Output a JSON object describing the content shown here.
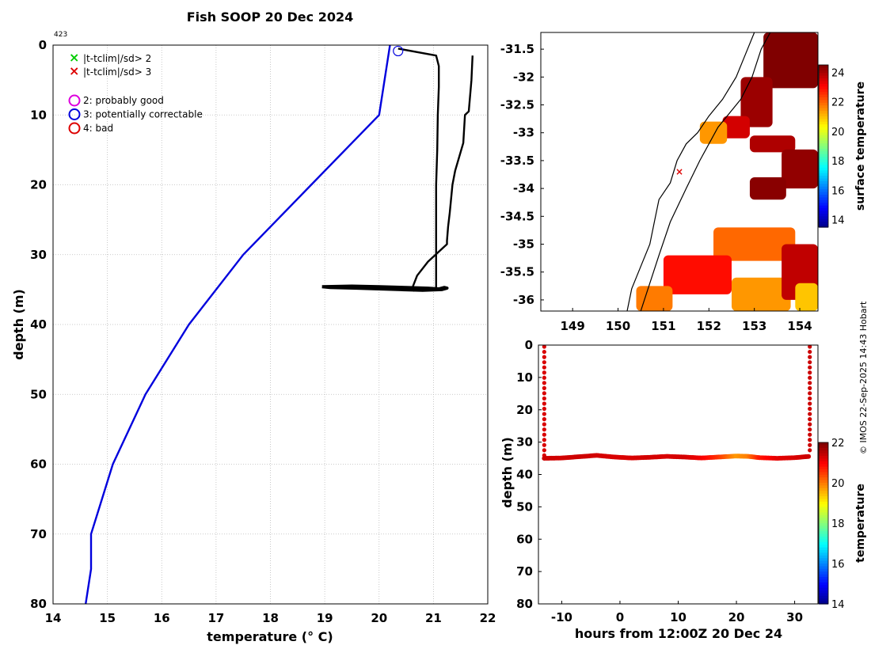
{
  "title": "Fish SOOP 20 Dec 2024",
  "profile_id": "423",
  "credit": "© IMOS 22-Sep-2025 14:43 Hobart",
  "colors": {
    "climatology": "#0000dd",
    "profile": "#000000",
    "land": "#000000"
  },
  "legend": {
    "flags": [
      {
        "symbol": "×",
        "label": "|t-tclim|/sd> 2",
        "color": "#00cc00"
      },
      {
        "symbol": "×",
        "label": "|t-tclim|/sd> 3",
        "color": "#dd0000"
      }
    ],
    "qc": [
      {
        "label": "2: probably good",
        "color": "#dd00dd"
      },
      {
        "label": "3: potentially correctable",
        "color": "#0000dd"
      },
      {
        "label": "4: bad",
        "color": "#dd0000"
      }
    ]
  },
  "chart_data": [
    {
      "id": "profile",
      "type": "line",
      "xlabel": "temperature (° C)",
      "ylabel": "depth (m)",
      "xlim": [
        14,
        22
      ],
      "ylim": [
        0,
        80
      ],
      "y_reversed": true,
      "grid": true,
      "xticks": [
        "14",
        "15",
        "16",
        "17",
        "18",
        "19",
        "20",
        "21",
        "22"
      ],
      "yticks": [
        "0",
        "10",
        "20",
        "30",
        "40",
        "50",
        "60",
        "70",
        "80"
      ],
      "series": [
        {
          "kind": "climatology",
          "x": [
            20.2,
            20.0,
            17.5,
            16.5,
            15.7,
            15.1,
            14.7,
            14.7,
            14.6
          ],
          "y": [
            0,
            10,
            30,
            40,
            50,
            60,
            70,
            75,
            80
          ]
        },
        {
          "kind": "profile-a",
          "x": [
            20.35,
            21.05,
            21.1,
            21.1,
            21.08,
            21.07,
            21.05,
            21.05,
            21.05,
            21.05,
            21.05
          ],
          "y": [
            0.5,
            1.5,
            3,
            6,
            10,
            15,
            20,
            25,
            30,
            33,
            35
          ]
        },
        {
          "kind": "profile-b",
          "x": [
            21.72,
            21.7,
            21.65,
            21.58,
            21.55,
            21.4,
            21.35,
            21.3,
            21.27,
            21.25,
            21.25,
            20.9,
            20.7,
            20.6,
            20.65
          ],
          "y": [
            1.5,
            5,
            9.5,
            10,
            14,
            18,
            20,
            24,
            26,
            28,
            28.5,
            31,
            33,
            35,
            35.2
          ]
        },
        {
          "kind": "bottom-trace",
          "x": [
            18.95,
            19.5,
            20.0,
            20.5,
            20.9,
            21.1,
            21.2,
            21.25,
            21.15,
            20.8,
            20.4,
            20.0,
            19.6,
            19.1,
            18.95
          ],
          "y": [
            34.6,
            34.5,
            34.6,
            34.7,
            34.8,
            34.9,
            34.7,
            34.8,
            35.0,
            35.1,
            35.0,
            34.9,
            34.8,
            34.7,
            34.6
          ]
        }
      ],
      "qc_marker": {
        "x": 20.35,
        "y": 0.5,
        "flag": "3"
      }
    },
    {
      "id": "map",
      "type": "heatmap",
      "colorbar_label": "surface temperature",
      "xlim": [
        148.3,
        154.4
      ],
      "ylim": [
        -36.2,
        -31.2
      ],
      "xticks": [
        "149",
        "150",
        "151",
        "152",
        "153",
        "154"
      ],
      "yticks": [
        "-31.5",
        "-32",
        "-32.5",
        "-33",
        "-33.5",
        "-34",
        "-34.5",
        "-35",
        "-35.5",
        "-36"
      ],
      "clim": [
        13.5,
        24.5
      ],
      "cticks": [
        "14",
        "16",
        "18",
        "20",
        "22",
        "24"
      ],
      "track_point": {
        "lon": 151.35,
        "lat": -33.7
      },
      "coastline": [
        [
          150.2,
          -36.2
        ],
        [
          150.3,
          -35.8
        ],
        [
          150.5,
          -35.4
        ],
        [
          150.7,
          -35.0
        ],
        [
          150.8,
          -34.6
        ],
        [
          150.9,
          -34.2
        ],
        [
          151.15,
          -33.9
        ],
        [
          151.3,
          -33.5
        ],
        [
          151.5,
          -33.2
        ],
        [
          151.75,
          -33.0
        ],
        [
          152.0,
          -32.7
        ],
        [
          152.3,
          -32.4
        ],
        [
          152.6,
          -32.0
        ],
        [
          152.8,
          -31.6
        ],
        [
          153.0,
          -31.2
        ]
      ],
      "shelf_edge": [
        [
          150.5,
          -36.2
        ],
        [
          150.7,
          -35.7
        ],
        [
          150.9,
          -35.2
        ],
        [
          151.15,
          -34.6
        ],
        [
          151.5,
          -34.0
        ],
        [
          151.8,
          -33.5
        ],
        [
          152.2,
          -32.9
        ],
        [
          152.7,
          -32.4
        ],
        [
          152.95,
          -32.0
        ],
        [
          153.15,
          -31.5
        ],
        [
          153.35,
          -31.2
        ]
      ],
      "patches": [
        {
          "lon": [
            153.2,
            154.4
          ],
          "lat": [
            -32.2,
            -31.2
          ],
          "value": 24.5
        },
        {
          "lon": [
            152.7,
            153.4
          ],
          "lat": [
            -32.9,
            -32.0
          ],
          "value": 24.2
        },
        {
          "lon": [
            152.3,
            152.9
          ],
          "lat": [
            -33.1,
            -32.7
          ],
          "value": 23.6
        },
        {
          "lon": [
            151.8,
            152.4
          ],
          "lat": [
            -33.2,
            -32.8
          ],
          "value": 21.5
        },
        {
          "lon": [
            152.9,
            153.9
          ],
          "lat": [
            -33.35,
            -33.05
          ],
          "value": 24.0
        },
        {
          "lon": [
            153.6,
            154.4
          ],
          "lat": [
            -34.0,
            -33.3
          ],
          "value": 24.3
        },
        {
          "lon": [
            152.9,
            153.7
          ],
          "lat": [
            -34.2,
            -33.8
          ],
          "value": 24.4
        },
        {
          "lon": [
            152.1,
            153.9
          ],
          "lat": [
            -35.3,
            -34.7
          ],
          "value": 22.0
        },
        {
          "lon": [
            151.0,
            152.5
          ],
          "lat": [
            -35.9,
            -35.2
          ],
          "value": 23.0
        },
        {
          "lon": [
            152.5,
            153.8
          ],
          "lat": [
            -36.2,
            -35.6
          ],
          "value": 21.5
        },
        {
          "lon": [
            153.6,
            154.4
          ],
          "lat": [
            -36.0,
            -35.0
          ],
          "value": 23.8
        },
        {
          "lon": [
            153.9,
            154.4
          ],
          "lat": [
            -36.2,
            -35.7
          ],
          "value": 21.0
        },
        {
          "lon": [
            150.4,
            151.2
          ],
          "lat": [
            -36.2,
            -35.75
          ],
          "value": 21.8
        }
      ]
    },
    {
      "id": "timeseries",
      "type": "scatter",
      "xlabel": "hours from 12:00Z 20 Dec 24",
      "ylabel": "depth (m)",
      "colorbar_label": "temperature",
      "xlim": [
        -14,
        34
      ],
      "ylim": [
        0,
        80
      ],
      "y_reversed": true,
      "xticks": [
        "-10",
        "0",
        "10",
        "20",
        "30"
      ],
      "yticks": [
        "0",
        "10",
        "20",
        "30",
        "40",
        "50",
        "60",
        "70",
        "80"
      ],
      "clim": [
        14,
        22
      ],
      "cticks": [
        "14",
        "16",
        "18",
        "20",
        "22"
      ],
      "descents": [
        {
          "x": -13.0,
          "ymin": 0.5,
          "ymax": 35,
          "value": 21.3
        },
        {
          "x": 32.6,
          "ymin": 0.5,
          "ymax": 34,
          "value": 21.4
        }
      ],
      "track_t": [
        -13,
        -10,
        -7,
        -4,
        -1,
        2,
        5,
        8,
        11,
        14,
        17,
        20,
        22,
        24,
        27,
        30,
        32.6
      ],
      "track_depth": [
        35.0,
        34.9,
        34.5,
        34.1,
        34.6,
        34.9,
        34.7,
        34.4,
        34.6,
        34.9,
        34.6,
        34.3,
        34.4,
        34.8,
        35.0,
        34.8,
        34.4
      ],
      "track_temp": [
        21.4,
        21.35,
        21.4,
        21.35,
        21.3,
        21.3,
        21.35,
        21.3,
        21.35,
        21.1,
        20.6,
        19.8,
        20.0,
        20.8,
        21.2,
        21.3,
        21.4
      ]
    }
  ]
}
